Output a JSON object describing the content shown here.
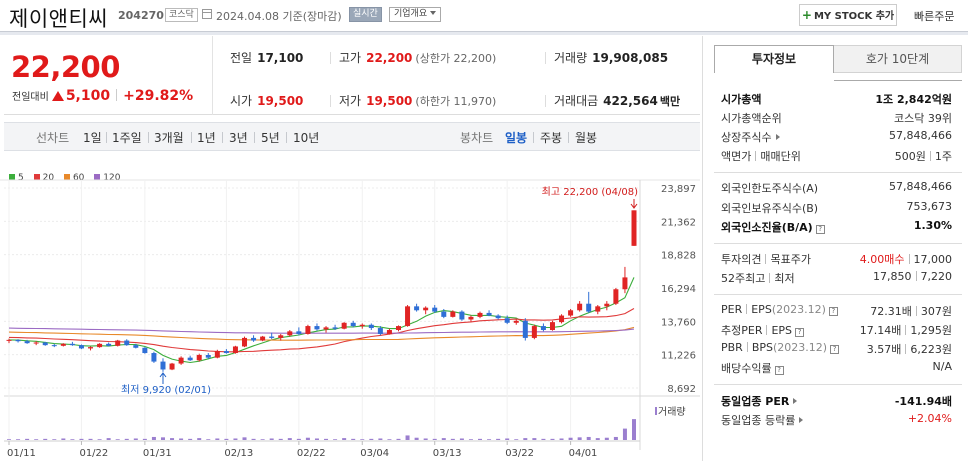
{
  "header": {
    "stock_name": "제이앤티씨",
    "code": "204270",
    "market_badge": "코스닥",
    "date_text": "2024.04.08 기준(장마감)",
    "realtime_label": "실시간",
    "corp_overview_label": "기업개요",
    "mystock_label": "MY STOCK 추가",
    "quick_order_label": "빠른주문"
  },
  "summary": {
    "current_price": "22,200",
    "change_label": "전일대비",
    "change_value": "5,100",
    "change_percent": "+29.82%",
    "prev_close_label": "전일",
    "prev_close": "17,100",
    "high_label": "고가",
    "high": "22,200",
    "high_sub": "(상한가 22,200)",
    "volume_label": "거래량",
    "volume": "19,908,085",
    "open_label": "시가",
    "open": "19,500",
    "low_label": "저가",
    "low": "19,500",
    "low_sub": "(하한가 11,970)",
    "value_label": "거래대금",
    "value": "422,564",
    "value_unit": "백만"
  },
  "chart_toolbar": {
    "line_label": "선차트",
    "periods": [
      "1일",
      "1주일",
      "3개월",
      "1년",
      "3년",
      "5년",
      "10년"
    ],
    "candle_label": "봉차트",
    "candle_modes": [
      "일봉",
      "주봉",
      "월봉"
    ],
    "active_candle": "일봉"
  },
  "legend": [
    {
      "label": "5",
      "color": "#3cae3c"
    },
    {
      "label": "20",
      "color": "#e03a3a"
    },
    {
      "label": "60",
      "color": "#e8892a"
    },
    {
      "label": "120",
      "color": "#9b6bc4"
    }
  ],
  "chart_data": {
    "type": "candlestick",
    "up_color": "#e02424",
    "down_color": "#2f6fd6",
    "y_ticks": [
      8692,
      11226,
      13760,
      16294,
      18828,
      21362,
      23897
    ],
    "y_tick_labels": [
      "8,692",
      "11,226",
      "13,760",
      "16,294",
      "18,828",
      "21,362",
      "23,897"
    ],
    "ylim": [
      8692,
      23897
    ],
    "x_tick_labels": [
      "01/11",
      "01/22",
      "01/31",
      "02/13",
      "02/22",
      "03/04",
      "03/13",
      "03/22",
      "04/01"
    ],
    "max_annotation": "최고 22,200 (04/08)",
    "min_annotation": "최저 9,920 (02/01)",
    "volume_label": "거래량",
    "candles": [
      [
        12300,
        12450,
        12100,
        12350
      ],
      [
        12350,
        12400,
        12150,
        12250
      ],
      [
        12250,
        12350,
        12050,
        12100
      ],
      [
        12100,
        12250,
        11950,
        12150
      ],
      [
        12150,
        12200,
        11900,
        11950
      ],
      [
        11950,
        12050,
        11800,
        11900
      ],
      [
        11900,
        12100,
        11850,
        12050
      ],
      [
        12050,
        12200,
        11900,
        11950
      ],
      [
        11950,
        12000,
        11650,
        11700
      ],
      [
        11700,
        11850,
        11550,
        11800
      ],
      [
        11800,
        12100,
        11750,
        12050
      ],
      [
        12050,
        12150,
        11850,
        11900
      ],
      [
        11900,
        12350,
        11850,
        12300
      ],
      [
        12300,
        12400,
        11900,
        11950
      ],
      [
        11950,
        12050,
        11700,
        11750
      ],
      [
        11750,
        11800,
        11300,
        11350
      ],
      [
        11350,
        11450,
        10600,
        10700
      ],
      [
        10700,
        10950,
        9920,
        10100
      ],
      [
        10100,
        10600,
        10050,
        10550
      ],
      [
        10550,
        11100,
        10450,
        11000
      ],
      [
        11000,
        11150,
        10750,
        10800
      ],
      [
        10800,
        11300,
        10700,
        11200
      ],
      [
        11200,
        11350,
        10900,
        11000
      ],
      [
        11000,
        11600,
        10950,
        11500
      ],
      [
        11500,
        11650,
        11300,
        11350
      ],
      [
        11350,
        11900,
        11300,
        11850
      ],
      [
        11850,
        12600,
        11800,
        12500
      ],
      [
        12500,
        12700,
        12200,
        12300
      ],
      [
        12300,
        12650,
        12250,
        12600
      ],
      [
        12600,
        12900,
        12400,
        12500
      ],
      [
        12500,
        12800,
        12300,
        12700
      ],
      [
        12700,
        13100,
        12600,
        13000
      ],
      [
        13000,
        13300,
        12700,
        12800
      ],
      [
        12800,
        13500,
        12750,
        13400
      ],
      [
        13400,
        13600,
        13050,
        13150
      ],
      [
        13150,
        13400,
        12900,
        13300
      ],
      [
        13300,
        13500,
        13100,
        13200
      ],
      [
        13200,
        13700,
        13150,
        13650
      ],
      [
        13650,
        13800,
        13300,
        13400
      ],
      [
        13400,
        13600,
        13200,
        13500
      ],
      [
        13500,
        13600,
        13100,
        13250
      ],
      [
        13250,
        13400,
        12700,
        12800
      ],
      [
        12800,
        13200,
        12750,
        13100
      ],
      [
        13100,
        13450,
        13000,
        13400
      ],
      [
        13400,
        15000,
        13350,
        14900
      ],
      [
        14900,
        15100,
        14500,
        14600
      ],
      [
        14600,
        14900,
        14300,
        14800
      ],
      [
        14800,
        15000,
        14400,
        14500
      ],
      [
        14500,
        14700,
        14000,
        14100
      ],
      [
        14100,
        14600,
        14050,
        14500
      ],
      [
        14500,
        14600,
        13800,
        13900
      ],
      [
        13900,
        14200,
        13700,
        14100
      ],
      [
        14100,
        14500,
        14000,
        14400
      ],
      [
        14400,
        14600,
        14150,
        14200
      ],
      [
        14200,
        14300,
        13900,
        14000
      ],
      [
        14000,
        14200,
        13550,
        13650
      ],
      [
        13650,
        13900,
        13500,
        13800
      ],
      [
        13800,
        14000,
        12300,
        12500
      ],
      [
        12500,
        13500,
        12400,
        13400
      ],
      [
        13400,
        13600,
        13000,
        13100
      ],
      [
        13100,
        13800,
        13050,
        13700
      ],
      [
        13700,
        14300,
        13600,
        14200
      ],
      [
        14200,
        14700,
        14100,
        14600
      ],
      [
        14600,
        15300,
        14500,
        15100
      ],
      [
        15100,
        16000,
        14400,
        14500
      ],
      [
        14500,
        15000,
        14300,
        14900
      ],
      [
        14900,
        15300,
        14600,
        15100
      ],
      [
        15100,
        16300,
        15000,
        16200
      ],
      [
        16200,
        17900,
        15900,
        17100
      ],
      [
        19500,
        22200,
        19500,
        22200
      ]
    ],
    "volumes": [
      0.02,
      0.02,
      0.03,
      0.02,
      0.03,
      0.02,
      0.04,
      0.02,
      0.03,
      0.03,
      0.02,
      0.05,
      0.02,
      0.03,
      0.04,
      0.03,
      0.08,
      0.07,
      0.05,
      0.04,
      0.03,
      0.05,
      0.02,
      0.04,
      0.03,
      0.04,
      0.07,
      0.03,
      0.02,
      0.04,
      0.03,
      0.05,
      0.03,
      0.06,
      0.04,
      0.03,
      0.02,
      0.05,
      0.03,
      0.02,
      0.03,
      0.04,
      0.02,
      0.03,
      0.12,
      0.06,
      0.04,
      0.03,
      0.05,
      0.03,
      0.04,
      0.02,
      0.03,
      0.02,
      0.03,
      0.04,
      0.02,
      0.05,
      0.05,
      0.03,
      0.03,
      0.04,
      0.06,
      0.07,
      0.08,
      0.05,
      0.06,
      0.08,
      0.3,
      0.55
    ]
  },
  "invest_panel": {
    "tab_active": "투자정보",
    "tab_other": "호가 10단계",
    "market_cap_label": "시가총액",
    "market_cap": "1조 2,842억원",
    "market_cap_rank_label": "시가총액순위",
    "market_cap_rank": "코스닥 39위",
    "listed_shares_label": "상장주식수",
    "listed_shares": "57,848,466",
    "face_label_a": "액면가",
    "face_label_b": "매매단위",
    "face_value": "500원",
    "trade_unit": "1주",
    "foreign_limit_label": "외국인한도주식수(A)",
    "foreign_limit": "57,848,466",
    "foreign_hold_label": "외국인보유주식수(B)",
    "foreign_hold": "753,673",
    "foreign_ratio_label": "외국인소진율(B/A)",
    "foreign_ratio": "1.30%",
    "opinion_label_a": "투자의견",
    "opinion_label_b": "목표주가",
    "opinion_value": "4.00매수",
    "target_price": "17,000",
    "week52_label_a": "52주최고",
    "week52_label_b": "최저",
    "week52_high": "17,850",
    "week52_low": "7,220",
    "per_label": "PER",
    "eps_label": "EPS",
    "eps_year": "(2023.12)",
    "per_value": "72.31배",
    "eps_value": "307원",
    "est_per_label": "추정PER",
    "est_eps_label": "EPS",
    "est_per_value": "17.14배",
    "est_eps_value": "1,295원",
    "pbr_label": "PBR",
    "bps_label": "BPS",
    "bps_year": "(2023.12)",
    "pbr_value": "3.57배",
    "bps_value": "6,223원",
    "dividend_label": "배당수익률",
    "dividend_value": "N/A",
    "industry_per_label": "동일업종 PER",
    "industry_per": "-141.94배",
    "industry_rate_label": "동일업종 등락률",
    "industry_rate": "+2.04%"
  }
}
